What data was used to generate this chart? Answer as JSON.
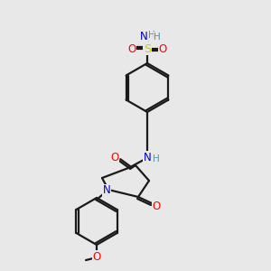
{
  "bg_color": "#e8e8e8",
  "bond_color": "#1a1a1a",
  "bond_width": 1.6,
  "atom_colors": {
    "O": "#ff0000",
    "N": "#0000cc",
    "S": "#cccc00",
    "C": "#1a1a1a",
    "H": "#4a9a9a"
  },
  "font_size": 8.5,
  "fig_size": [
    3.0,
    3.0
  ],
  "dpi": 100
}
